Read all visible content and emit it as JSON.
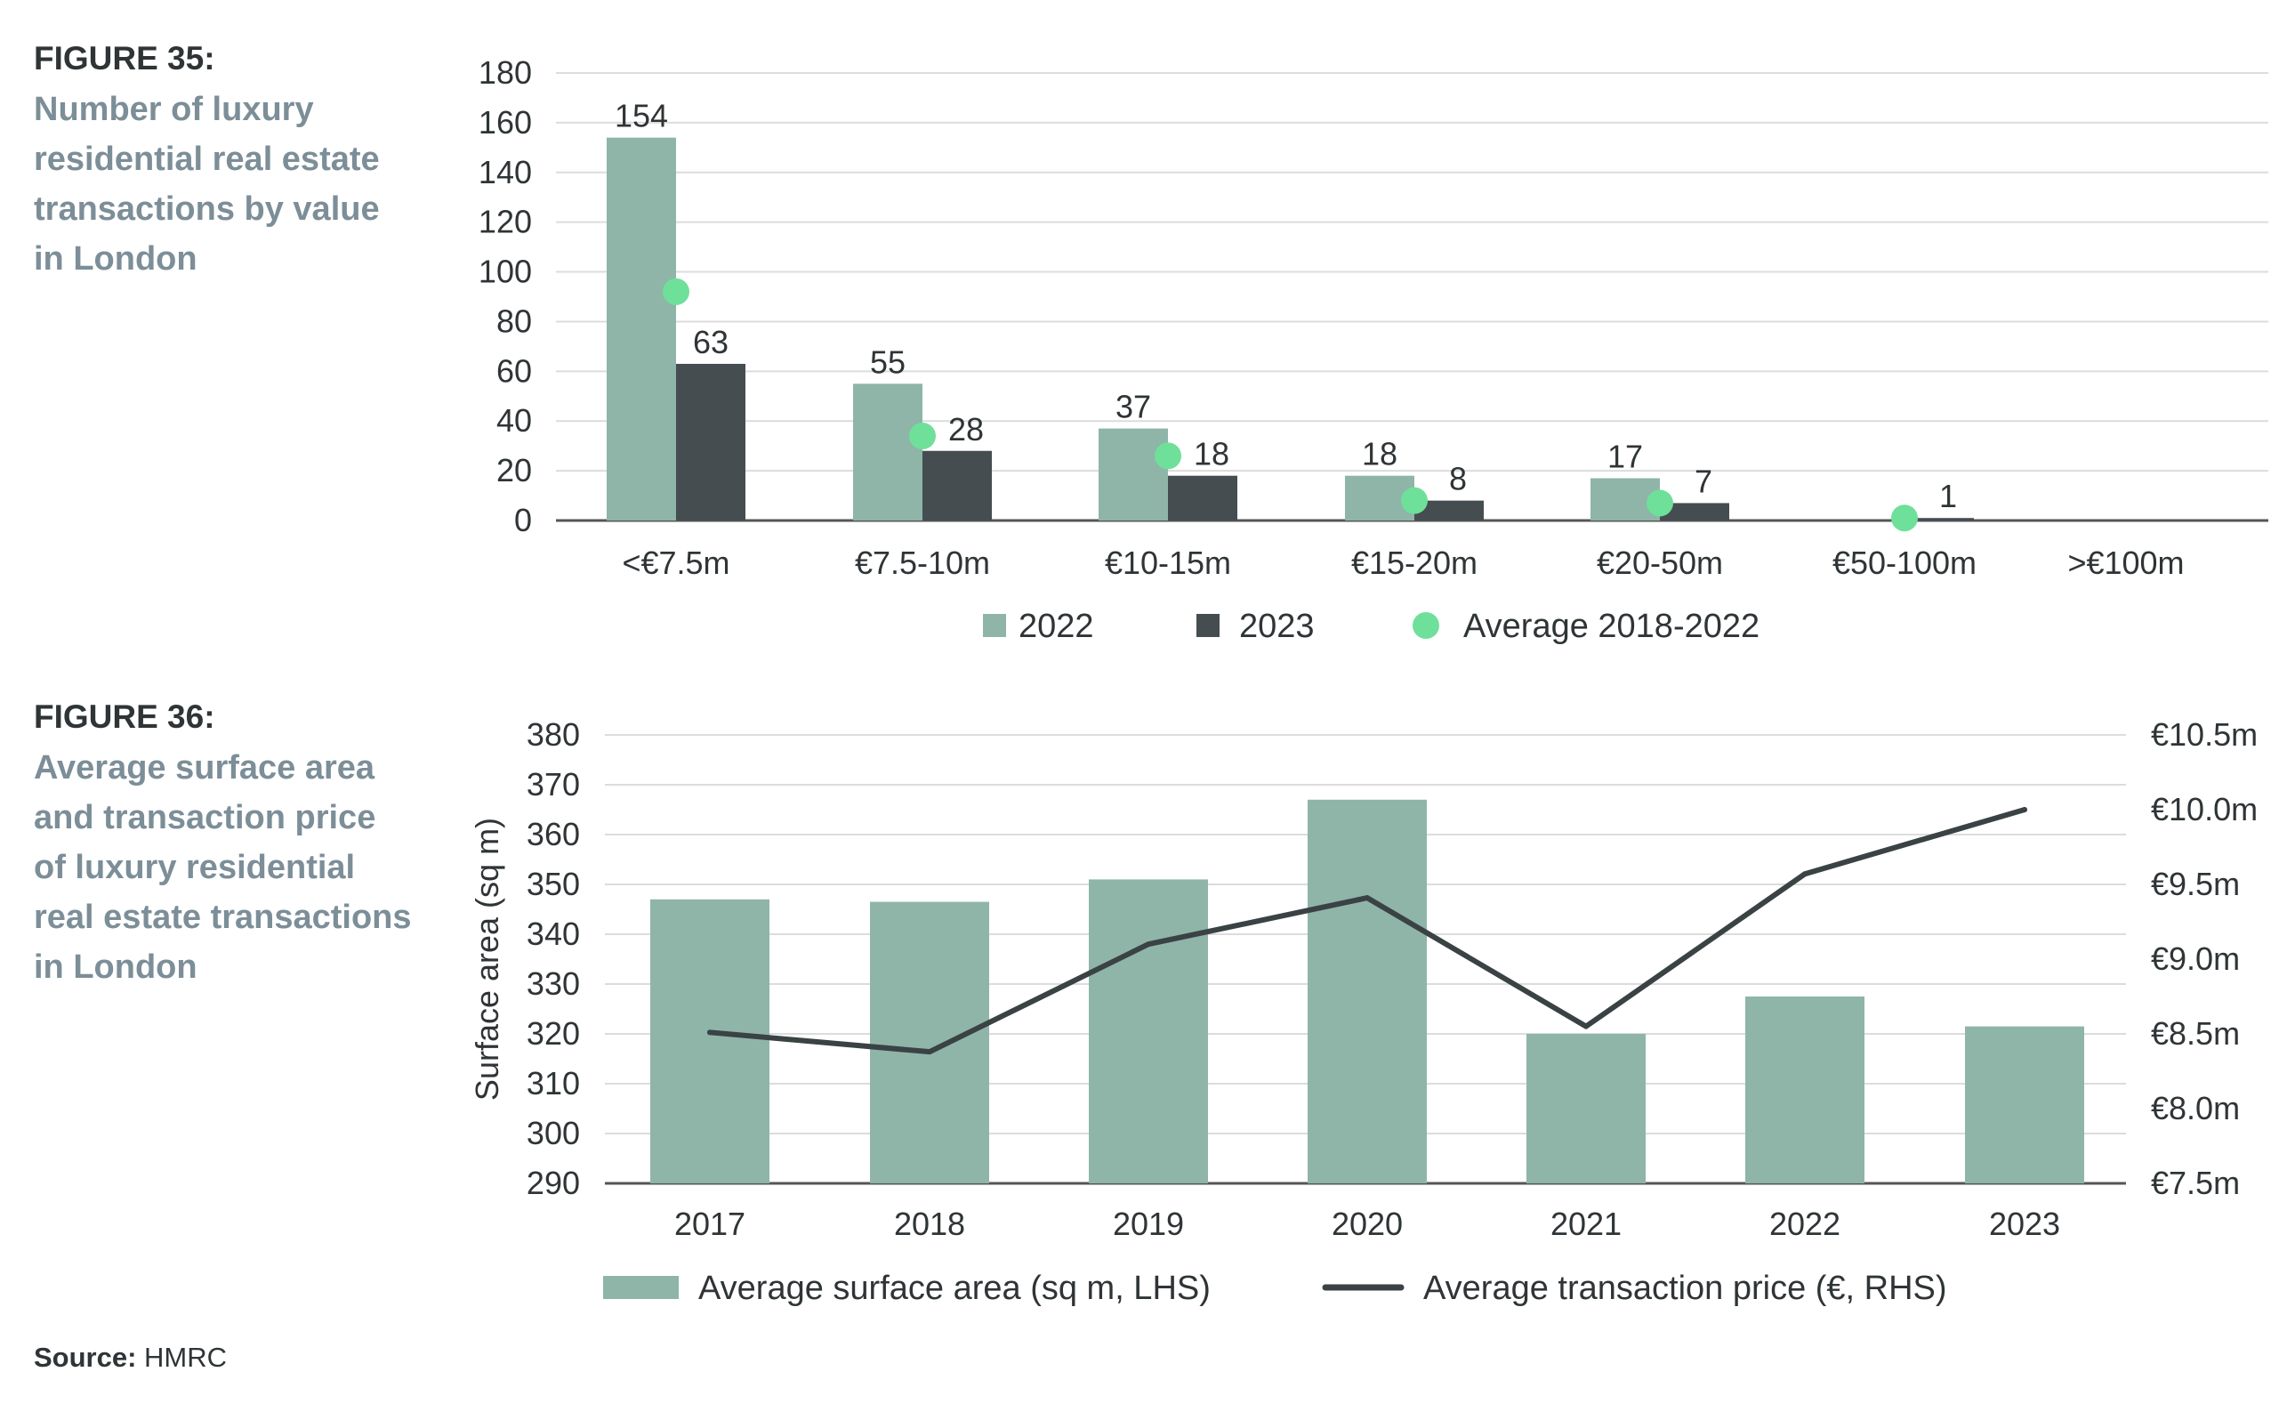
{
  "figure35": {
    "label": "FIGURE 35:",
    "title": "Number of luxury\nresidential real estate\ntransactions by value\nin London"
  },
  "figure36": {
    "label": "FIGURE 36:",
    "title": "Average surface area\nand transaction price\nof luxury residential\nreal estate transactions\nin London"
  },
  "source": {
    "label": "Source:",
    "value": "HMRC"
  },
  "colors": {
    "bar_2022": "#8fb5a8",
    "bar_2023": "#454d50",
    "dot_avg": "#6ee09a",
    "line": "#3a4244",
    "grid": "#dcdcdc",
    "axis": "#555555",
    "text": "#2f3436"
  },
  "chart_data": [
    {
      "type": "bar",
      "title": "Number of luxury residential real estate transactions by value in London",
      "categories": [
        "<€7.5m",
        "€7.5-10m",
        "€10-15m",
        "€15-20m",
        "€20-50m",
        "€50-100m",
        ">€100m"
      ],
      "series": [
        {
          "name": "2022",
          "values": [
            154,
            55,
            37,
            18,
            17,
            0,
            0
          ],
          "labels": [
            "154",
            "55",
            "37",
            "18",
            "17",
            "",
            ""
          ]
        },
        {
          "name": "2023",
          "values": [
            63,
            28,
            18,
            8,
            7,
            1,
            0
          ],
          "labels": [
            "63",
            "28",
            "18",
            "8",
            "7",
            "1",
            ""
          ]
        },
        {
          "name": "Average 2018-2022",
          "type": "scatter",
          "values": [
            92,
            34,
            26,
            8,
            7,
            1,
            null
          ]
        }
      ],
      "yticks": [
        "0",
        "20",
        "40",
        "60",
        "80",
        "100",
        "120",
        "140",
        "160",
        "180"
      ],
      "ylim": [
        0,
        180
      ],
      "xlabel": "",
      "ylabel": "",
      "legend": [
        "2022",
        "2023",
        "Average 2018-2022"
      ],
      "grid": true,
      "legend_position": "bottom"
    },
    {
      "type": "bar",
      "title": "Average surface area and transaction price of luxury residential real estate transactions in London",
      "categories": [
        "2017",
        "2018",
        "2019",
        "2020",
        "2021",
        "2022",
        "2023"
      ],
      "series": [
        {
          "name": "Average surface area (sq m, LHS)",
          "type": "bar",
          "axis": "left",
          "values": [
            347,
            346.5,
            351,
            367,
            320,
            327.5,
            321.5
          ]
        },
        {
          "name": "Average transaction price (€, RHS)",
          "type": "line",
          "axis": "right",
          "values": [
            8.51,
            8.38,
            9.1,
            9.41,
            8.55,
            9.57,
            10.0
          ]
        }
      ],
      "ylabel": "Surface area (sq m)",
      "ylim": [
        290,
        380
      ],
      "yticks": [
        "290",
        "300",
        "310",
        "320",
        "330",
        "340",
        "350",
        "360",
        "370",
        "380"
      ],
      "y2lim": [
        7.5,
        10.5
      ],
      "y2ticks": [
        "€7.5m",
        "€8.0m",
        "€8.5m",
        "€9.0m",
        "€9.5m",
        "€10.0m",
        "€10.5m"
      ],
      "legend": [
        "Average surface area (sq m, LHS)",
        "Average transaction price (€, RHS)"
      ],
      "grid": true,
      "legend_position": "bottom"
    }
  ]
}
